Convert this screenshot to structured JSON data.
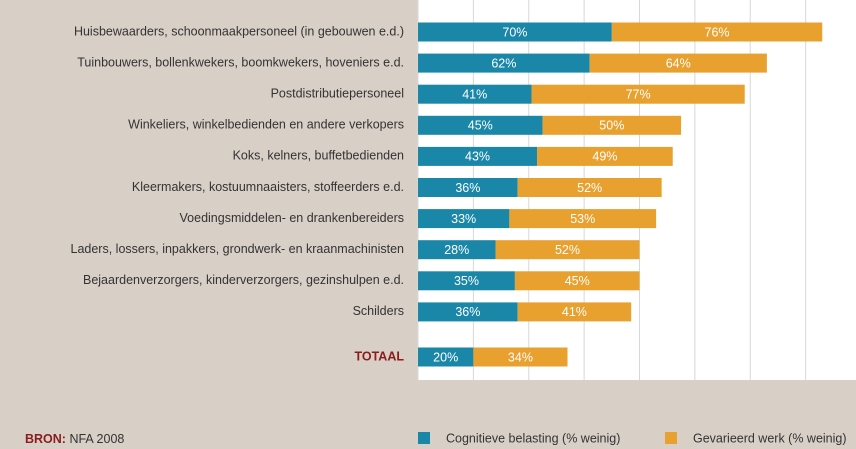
{
  "chart_data": {
    "type": "stacked-barh",
    "categories": [
      "Huisbewaarders, schoonmaakpersoneel (in gebouwen e.d.)",
      "Tuinbouwers, bollenkwekers, boomkwekers, hoveniers e.d.",
      "Postdistributiepersoneel",
      "Winkeliers, winkelbedienden en andere verkopers",
      "Koks, kelners, buffetbedienden",
      "Kleermakers, kostuumnaaisters, stoffeerders e.d.",
      "Voedingsmiddelen- en drankenbereiders",
      "Laders, lossers, inpakkers, grondwerk- en kraanmachinisten",
      "Bejaardenverzorgers, kinderverzorgers, gezinshulpen e.d.",
      "Schilders",
      "TOTAAL"
    ],
    "series": [
      {
        "name": "Cognitieve belasting (% weinig)",
        "color": "#1a87a8",
        "values": [
          70,
          62,
          41,
          45,
          43,
          36,
          33,
          28,
          35,
          36,
          20
        ],
        "value_labels": [
          "70%",
          "62%",
          "41%",
          "45%",
          "43%",
          "36%",
          "33%",
          "28%",
          "35%",
          "36%",
          "20%"
        ]
      },
      {
        "name": "Gevarieerd werk (% weinig)",
        "color": "#e8a02e",
        "values": [
          76,
          64,
          77,
          50,
          49,
          52,
          53,
          52,
          45,
          41,
          34
        ],
        "value_labels": [
          "76%",
          "64%",
          "77%",
          "50%",
          "49%",
          "52%",
          "53%",
          "52%",
          "45%",
          "41%",
          "34%"
        ]
      }
    ],
    "xlim": [
      0,
      160
    ],
    "xticks": [
      0,
      20,
      40,
      60,
      80,
      100,
      120,
      140,
      160
    ],
    "grid": true,
    "source_label": "BRON:",
    "source": "NFA 2008"
  }
}
